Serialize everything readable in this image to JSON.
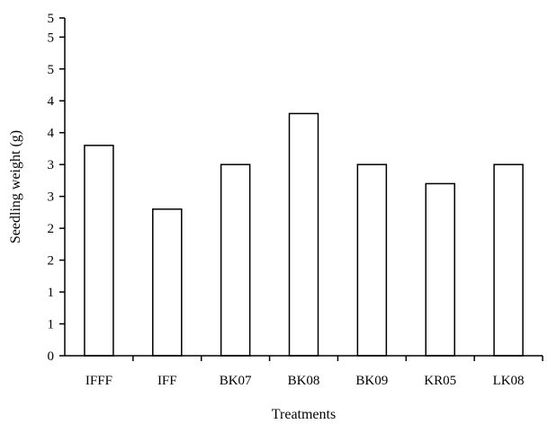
{
  "chart_data": {
    "type": "bar",
    "categories": [
      "IFFF",
      "IFF",
      "BK07",
      "BK08",
      "BK09",
      "KR05",
      "LK08"
    ],
    "values": [
      3.3,
      2.3,
      3.0,
      3.8,
      3.0,
      2.7,
      3.0
    ],
    "xlabel": "Treatments",
    "ylabel": "Seedling weight (g)",
    "ylim": [
      0,
      5.3
    ],
    "y_tick_values": [
      0,
      0.5,
      1,
      1.5,
      2,
      2.5,
      3,
      3.5,
      4,
      4.5,
      5,
      5.3
    ],
    "y_tick_labels": [
      "0",
      "1",
      "1",
      "2",
      "2",
      "3",
      "3",
      "4",
      "4",
      "5",
      "5",
      "5"
    ],
    "grid": false,
    "legend": "none",
    "colors": {
      "bar_fill": "#ffffff",
      "bar_stroke": "#000000",
      "axis": "#000000"
    }
  }
}
